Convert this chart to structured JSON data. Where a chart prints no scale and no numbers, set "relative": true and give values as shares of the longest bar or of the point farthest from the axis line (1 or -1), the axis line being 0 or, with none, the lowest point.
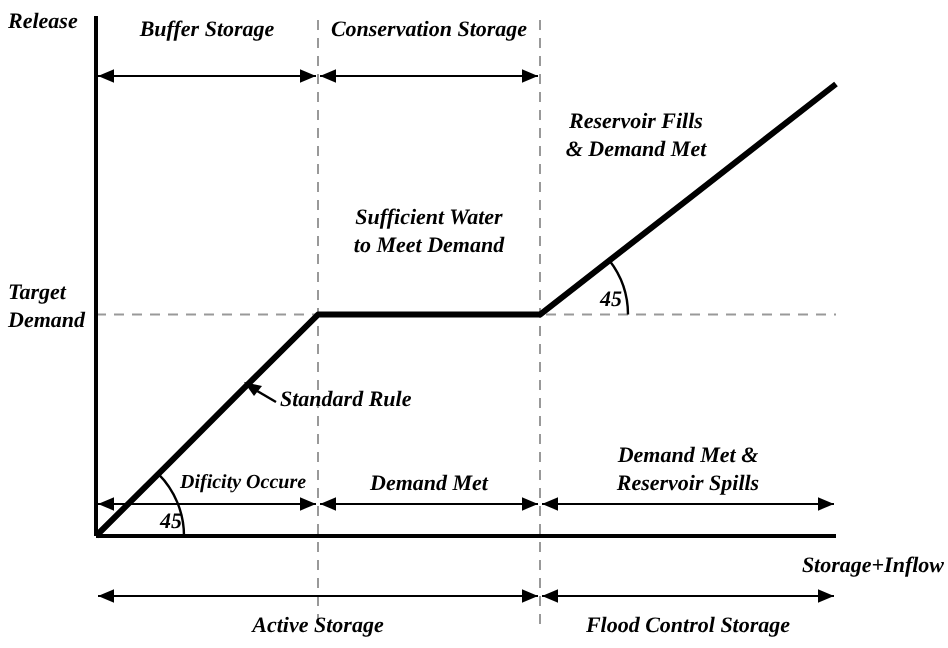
{
  "chart_data": {
    "type": "line",
    "relative": true,
    "xlabel": "Storage+Inflow",
    "ylabel": "Release",
    "categories": [
      null,
      null,
      null,
      null,
      null,
      null,
      null,
      null,
      null,
      null,
      null
    ],
    "marker": "none",
    "line_style": "solid",
    "series": [
      {
        "color": "#000000",
        "values": [
          0,
          0.163,
          0.327,
          0.49,
          0.49,
          0.49,
          0.49,
          0.6175,
          0.745,
          0.8725,
          1
        ]
      }
    ],
    "ref_lines": [
      {
        "axis": "y",
        "value": 0.49,
        "label": "Target Demand",
        "line_style": "dashed",
        "color": "#999999"
      }
    ],
    "annotations": [
      "Buffer Storage",
      "Conservation Storage",
      "Sufficient Water\nto Meet Demand",
      "Reservoir Fills\n& Demand Met",
      "Standard Rule",
      "45",
      "45",
      "Dificity Occure",
      "Demand Met",
      "Demand Met &\nReservoir Spills",
      "Active Storage",
      "Flood Control Storage"
    ]
  }
}
